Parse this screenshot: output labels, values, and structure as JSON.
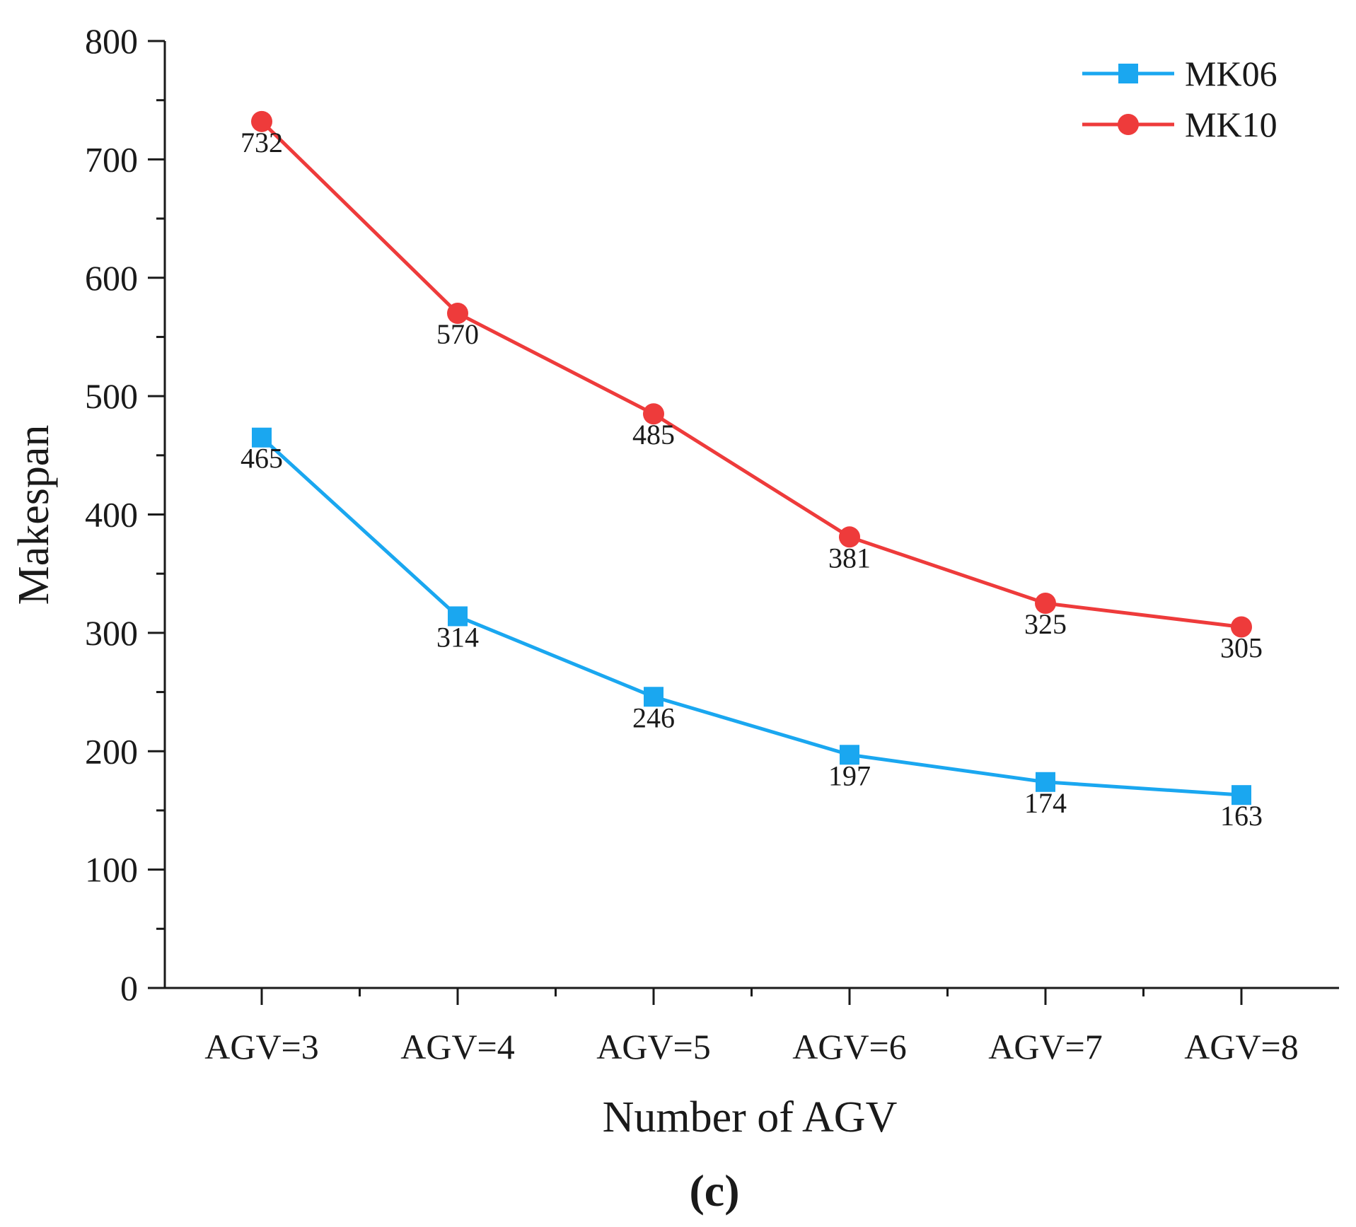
{
  "chart_data": {
    "type": "line",
    "title": "",
    "xlabel": "Number of AGV",
    "ylabel": "Makespan",
    "categories": [
      "AGV=3",
      "AGV=4",
      "AGV=5",
      "AGV=6",
      "AGV=7",
      "AGV=8"
    ],
    "series": [
      {
        "name": "MK06",
        "marker": "square",
        "color": "#1aa7f0",
        "values": [
          465,
          314,
          246,
          197,
          174,
          163
        ],
        "labels": [
          "465",
          "314",
          "246",
          "197",
          "174",
          "163"
        ]
      },
      {
        "name": "MK10",
        "marker": "circle",
        "color": "#ee3b3b",
        "values": [
          732,
          570,
          485,
          381,
          325,
          305
        ],
        "labels": [
          "732",
          "570",
          "485",
          "381",
          "325",
          "305"
        ]
      }
    ],
    "ylim": [
      0,
      800
    ],
    "yticks": [
      0,
      100,
      200,
      300,
      400,
      500,
      600,
      700,
      800
    ],
    "ytick_labels": [
      "0",
      "100",
      "200",
      "300",
      "400",
      "500",
      "600",
      "700",
      "800"
    ],
    "grid": false,
    "legend_position": "top-right"
  },
  "panel_label": "(c)"
}
